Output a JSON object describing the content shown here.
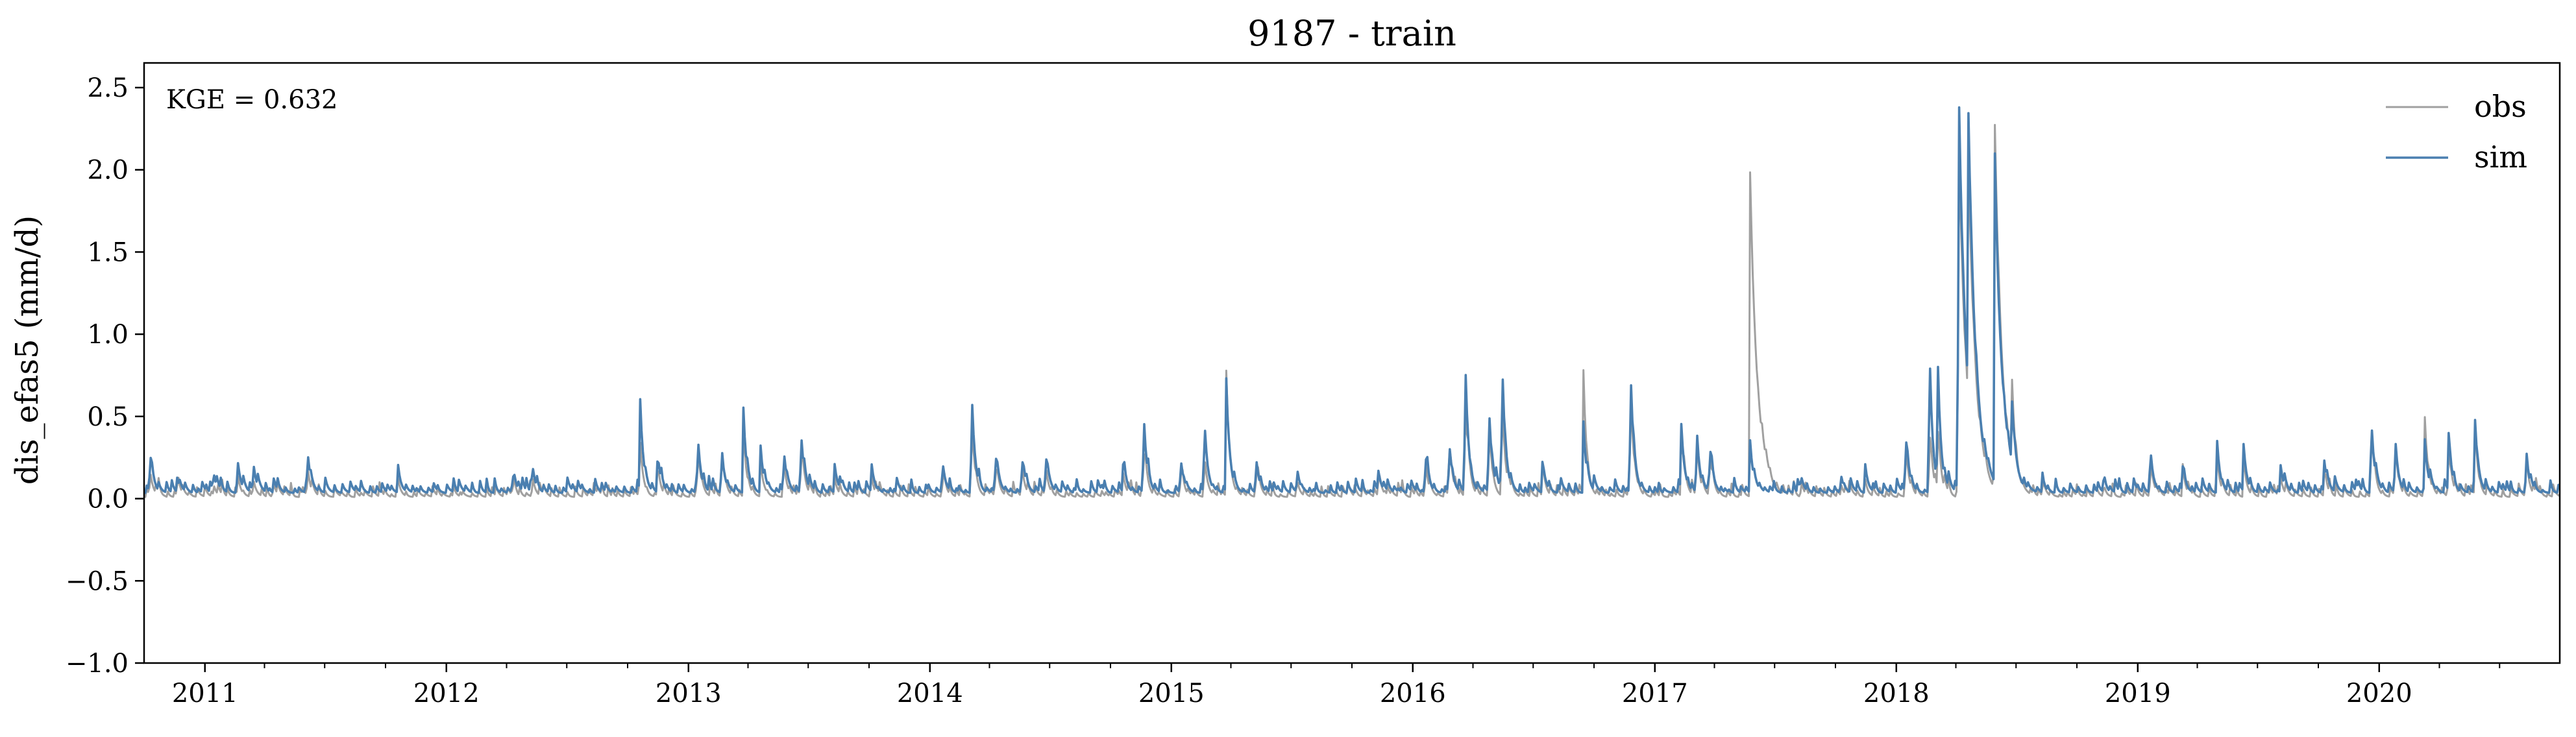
{
  "chart_data": {
    "type": "line",
    "title": "9187 - train",
    "xlabel": "",
    "ylabel": "dis_efas5 (mm/d)",
    "ylim": [
      -1.0,
      2.65
    ],
    "yticks": [
      -1.0,
      -0.5,
      0.0,
      0.5,
      1.0,
      1.5,
      2.0,
      2.5
    ],
    "ytick_labels": [
      "−1.0",
      "−0.5",
      "0.0",
      "0.5",
      "1.0",
      "1.5",
      "2.0",
      "2.5"
    ],
    "xlim": [
      "2010-10-01",
      "2020-09-30"
    ],
    "xtick_labels": [
      "2011",
      "2012",
      "2013",
      "2014",
      "2015",
      "2016",
      "2017",
      "2018",
      "2019",
      "2020"
    ],
    "xticks": [
      "2011-01-01",
      "2012-01-01",
      "2013-01-01",
      "2014-01-01",
      "2015-01-01",
      "2016-01-01",
      "2017-01-01",
      "2018-01-01",
      "2019-01-01",
      "2020-01-01"
    ],
    "grid": false,
    "legend_position": "top-right",
    "annotation": "KGE = 0.632",
    "series": [
      {
        "name": "obs",
        "color": "#a0a0a0",
        "baseline": 0.01,
        "peaks": [
          [
            "2010-10-10",
            0.14
          ],
          [
            "2010-11-20",
            0.07
          ],
          [
            "2011-01-15",
            0.06
          ],
          [
            "2011-02-20",
            0.12
          ],
          [
            "2011-03-15",
            0.1
          ],
          [
            "2011-04-15",
            0.08
          ],
          [
            "2011-06-05",
            0.14
          ],
          [
            "2011-10-20",
            0.08
          ],
          [
            "2012-04-10",
            0.08
          ],
          [
            "2012-05-10",
            0.1
          ],
          [
            "2012-10-20",
            0.3
          ],
          [
            "2012-11-15",
            0.15
          ],
          [
            "2013-01-15",
            0.32
          ],
          [
            "2013-02-20",
            0.25
          ],
          [
            "2013-03-25",
            0.4
          ],
          [
            "2013-04-20",
            0.2
          ],
          [
            "2013-05-25",
            0.22
          ],
          [
            "2013-06-20",
            0.3
          ],
          [
            "2013-08-10",
            0.12
          ],
          [
            "2013-10-05",
            0.1
          ],
          [
            "2014-01-20",
            0.15
          ],
          [
            "2014-03-05",
            0.5
          ],
          [
            "2014-04-10",
            0.2
          ],
          [
            "2014-05-20",
            0.18
          ],
          [
            "2014-06-25",
            0.2
          ],
          [
            "2014-10-20",
            0.15
          ],
          [
            "2014-11-20",
            0.3
          ],
          [
            "2015-01-15",
            0.2
          ],
          [
            "2015-02-20",
            0.25
          ],
          [
            "2015-03-25",
            0.77
          ],
          [
            "2015-05-10",
            0.12
          ],
          [
            "2015-07-10",
            0.1
          ],
          [
            "2015-11-10",
            0.1
          ],
          [
            "2016-01-20",
            0.2
          ],
          [
            "2016-02-25",
            0.3
          ],
          [
            "2016-03-20",
            0.7
          ],
          [
            "2016-04-25",
            0.45
          ],
          [
            "2016-05-15",
            0.6
          ],
          [
            "2016-07-15",
            0.15
          ],
          [
            "2016-09-15",
            0.76
          ],
          [
            "2016-11-25",
            0.7
          ],
          [
            "2017-02-10",
            0.4
          ],
          [
            "2017-03-05",
            0.35
          ],
          [
            "2017-03-25",
            0.3
          ],
          [
            "2017-05-25",
            1.93
          ],
          [
            "2017-08-10",
            0.08
          ],
          [
            "2017-10-10",
            0.07
          ],
          [
            "2017-11-15",
            0.09
          ],
          [
            "2018-01-15",
            0.35
          ],
          [
            "2018-02-20",
            0.45
          ],
          [
            "2018-03-05",
            0.35
          ],
          [
            "2018-04-05",
            2.3
          ],
          [
            "2018-04-20",
            1.5
          ],
          [
            "2018-05-30",
            2.19
          ],
          [
            "2018-06-25",
            0.5
          ],
          [
            "2018-08-10",
            0.06
          ],
          [
            "2018-11-10",
            0.05
          ],
          [
            "2019-01-20",
            0.22
          ],
          [
            "2019-03-10",
            0.12
          ],
          [
            "2019-05-01",
            0.22
          ],
          [
            "2019-06-10",
            0.2
          ],
          [
            "2019-08-05",
            0.12
          ],
          [
            "2019-10-10",
            0.15
          ],
          [
            "2019-12-20",
            0.48
          ],
          [
            "2020-01-25",
            0.3
          ],
          [
            "2020-03-10",
            0.46
          ],
          [
            "2020-04-15",
            0.3
          ],
          [
            "2020-05-25",
            0.4
          ],
          [
            "2020-08-10",
            0.22
          ]
        ]
      },
      {
        "name": "sim",
        "color": "#4a7fb0",
        "baseline": 0.035,
        "peaks": [
          [
            "2010-10-10",
            0.28
          ],
          [
            "2010-11-20",
            0.12
          ],
          [
            "2011-01-15",
            0.1
          ],
          [
            "2011-02-20",
            0.18
          ],
          [
            "2011-03-15",
            0.15
          ],
          [
            "2011-04-15",
            0.12
          ],
          [
            "2011-06-05",
            0.28
          ],
          [
            "2011-10-20",
            0.15
          ],
          [
            "2012-04-10",
            0.15
          ],
          [
            "2012-05-10",
            0.18
          ],
          [
            "2012-10-20",
            0.58
          ],
          [
            "2012-11-15",
            0.22
          ],
          [
            "2013-01-15",
            0.38
          ],
          [
            "2013-02-20",
            0.3
          ],
          [
            "2013-03-25",
            0.52
          ],
          [
            "2013-04-20",
            0.28
          ],
          [
            "2013-05-25",
            0.3
          ],
          [
            "2013-06-20",
            0.42
          ],
          [
            "2013-08-10",
            0.18
          ],
          [
            "2013-10-05",
            0.15
          ],
          [
            "2014-01-20",
            0.22
          ],
          [
            "2014-03-05",
            0.65
          ],
          [
            "2014-04-10",
            0.28
          ],
          [
            "2014-05-20",
            0.26
          ],
          [
            "2014-06-25",
            0.28
          ],
          [
            "2014-10-20",
            0.2
          ],
          [
            "2014-11-20",
            0.5
          ],
          [
            "2015-01-15",
            0.25
          ],
          [
            "2015-02-20",
            0.45
          ],
          [
            "2015-03-25",
            0.72
          ],
          [
            "2015-05-10",
            0.18
          ],
          [
            "2015-07-10",
            0.15
          ],
          [
            "2015-11-10",
            0.15
          ],
          [
            "2016-01-20",
            0.28
          ],
          [
            "2016-02-25",
            0.35
          ],
          [
            "2016-03-20",
            0.88
          ],
          [
            "2016-04-25",
            0.58
          ],
          [
            "2016-05-15",
            0.84
          ],
          [
            "2016-07-15",
            0.22
          ],
          [
            "2016-09-15",
            0.42
          ],
          [
            "2016-11-25",
            0.83
          ],
          [
            "2017-02-10",
            0.42
          ],
          [
            "2017-03-05",
            0.38
          ],
          [
            "2017-03-25",
            0.32
          ],
          [
            "2017-05-25",
            0.35
          ],
          [
            "2017-08-10",
            0.12
          ],
          [
            "2017-10-10",
            0.12
          ],
          [
            "2017-11-15",
            0.14
          ],
          [
            "2018-01-15",
            0.4
          ],
          [
            "2018-02-20",
            0.92
          ],
          [
            "2018-03-05",
            0.7
          ],
          [
            "2018-04-05",
            2.53
          ],
          [
            "2018-04-20",
            1.7
          ],
          [
            "2018-05-30",
            1.96
          ],
          [
            "2018-06-25",
            0.4
          ],
          [
            "2018-08-10",
            0.1
          ],
          [
            "2018-11-10",
            0.1
          ],
          [
            "2019-01-20",
            0.28
          ],
          [
            "2019-03-10",
            0.18
          ],
          [
            "2019-05-01",
            0.3
          ],
          [
            "2019-06-10",
            0.28
          ],
          [
            "2019-08-05",
            0.2
          ],
          [
            "2019-10-10",
            0.22
          ],
          [
            "2019-12-20",
            0.45
          ],
          [
            "2020-01-25",
            0.32
          ],
          [
            "2020-03-10",
            0.35
          ],
          [
            "2020-04-15",
            0.38
          ],
          [
            "2020-05-25",
            0.44
          ],
          [
            "2020-08-10",
            0.25
          ]
        ]
      }
    ]
  }
}
